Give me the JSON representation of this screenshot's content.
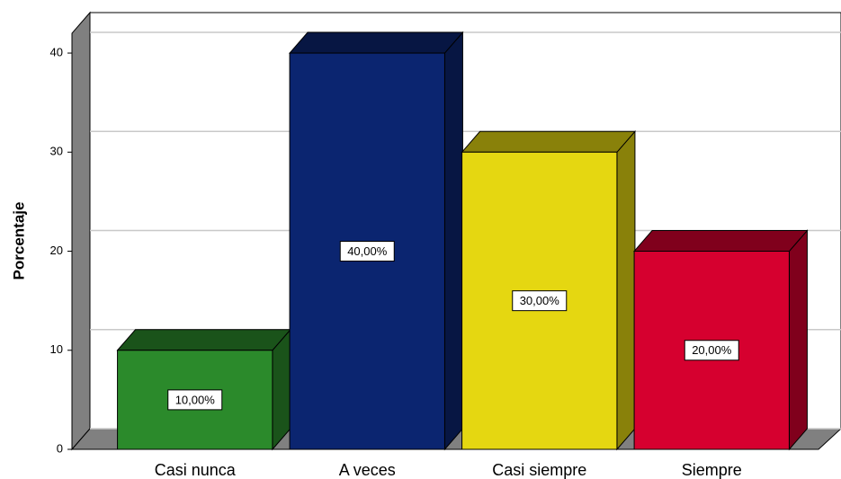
{
  "chart_data": {
    "type": "bar",
    "y_label": "Porcentaje",
    "categories": [
      "Casi nunca",
      "A veces",
      "Casi siempre",
      "Siempre"
    ],
    "values": [
      10,
      40,
      30,
      20
    ],
    "value_labels": [
      "10,00%",
      "40,00%",
      "30,00%",
      "20,00%"
    ],
    "colors": [
      "#2b8a2b",
      "#0b2570",
      "#e5d711",
      "#d6002f"
    ],
    "ylim": [
      0,
      42
    ],
    "yticks": [
      0,
      10,
      20,
      30,
      40
    ],
    "grid": true
  }
}
